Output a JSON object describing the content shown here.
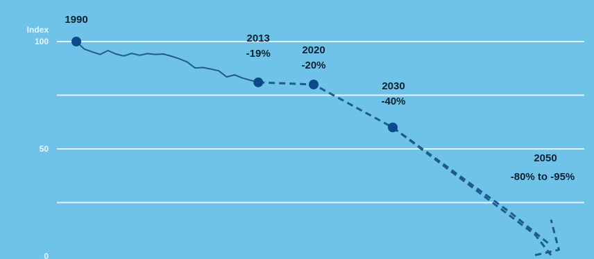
{
  "colors": {
    "background": "#6fc3e8",
    "gridline": "#e4f3fb",
    "axis_text": "#eaf6fc",
    "line": "#1f5a8c",
    "marker": "#0d4a8a",
    "annotation_text": "#0e2233"
  },
  "chart_data": {
    "type": "line",
    "ylabel": "Index",
    "y_ticks": [
      {
        "value": 100,
        "label": "100"
      },
      {
        "value": 50,
        "label": "50"
      },
      {
        "value": 0,
        "label": "0"
      }
    ],
    "ylim": [
      0,
      103
    ],
    "xlim": [
      1988,
      2051
    ],
    "gridlines": [
      100,
      75,
      50,
      25
    ],
    "legend": "none",
    "series": [
      {
        "style": "solid",
        "points": [
          [
            1990,
            100
          ],
          [
            1991,
            96.5
          ],
          [
            1992,
            95.2
          ],
          [
            1993,
            94.0
          ],
          [
            1994,
            95.8
          ],
          [
            1995,
            94.2
          ],
          [
            1996,
            93.3
          ],
          [
            1997,
            94.5
          ],
          [
            1998,
            93.6
          ],
          [
            1999,
            94.4
          ],
          [
            2000,
            94.0
          ],
          [
            2001,
            94.2
          ],
          [
            2002,
            93.2
          ],
          [
            2003,
            92.0
          ],
          [
            2004,
            90.5
          ],
          [
            2005,
            87.7
          ],
          [
            2006,
            87.9
          ],
          [
            2007,
            87.2
          ],
          [
            2008,
            86.4
          ],
          [
            2009,
            83.5
          ],
          [
            2010,
            84.5
          ],
          [
            2011,
            83.0
          ],
          [
            2012,
            82.0
          ],
          [
            2013,
            81.0
          ]
        ]
      },
      {
        "style": "dashed",
        "points": [
          [
            2013,
            81.0
          ],
          [
            2020,
            80.0
          ],
          [
            2030,
            60.0
          ],
          [
            2048,
            10.0
          ],
          [
            2050,
            0.5
          ]
        ]
      },
      {
        "style": "dashed",
        "points": [
          [
            2030,
            60.0
          ],
          [
            2045,
            20.0
          ],
          [
            2050,
            5.0
          ]
        ]
      },
      {
        "style": "dashed",
        "points": [
          [
            2048,
            0.5
          ],
          [
            2051,
            3.0
          ],
          [
            2050,
            17.0
          ]
        ]
      }
    ],
    "markers": [
      {
        "x": 1990,
        "y": 100,
        "label_year": "1990",
        "label_value": ""
      },
      {
        "x": 2013,
        "y": 81,
        "label_year": "2013",
        "label_value": "-19%"
      },
      {
        "x": 2020,
        "y": 80,
        "label_year": "2020",
        "label_value": "-20%"
      },
      {
        "x": 2030,
        "y": 60,
        "label_year": "2030",
        "label_value": "-40%"
      }
    ],
    "annotations": [
      {
        "label_year": "2050",
        "label_value": "-80% to -95%",
        "x": 2047,
        "y": 47
      }
    ]
  }
}
